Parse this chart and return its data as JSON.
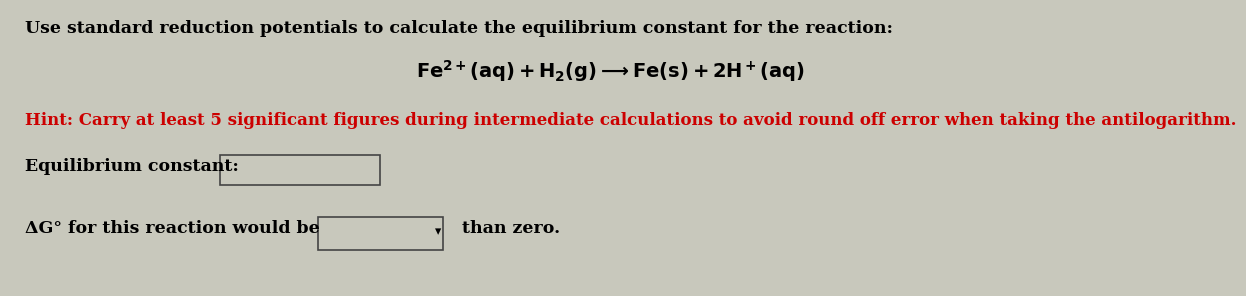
{
  "background_color": "#c8c8bc",
  "title_line": "Use standard reduction potentials to calculate the equilibrium constant for the reaction:",
  "title_fontsize": 12.5,
  "title_color": "#000000",
  "equation": "$\\mathbf{Fe^{2+}(aq) + H_2(g)\\longrightarrow Fe(s) + 2H^+(aq)}$",
  "equation_fontsize": 14,
  "hint_text": "Hint: Carry at least 5 significant figures during intermediate calculations to avoid round off error when taking the antilogarithm.",
  "hint_color": "#cc0000",
  "hint_fontsize": 12,
  "eq_constant_label": "Equilibrium constant:",
  "eq_constant_fontsize": 12.5,
  "delta_g_label": "ΔG° for this reaction would be",
  "delta_g_fontsize": 12.5,
  "than_zero_text": "  than zero.",
  "box_facecolor": "#c8c8bc",
  "box_edgecolor": "#444444",
  "dropdown_arrow": "▾"
}
